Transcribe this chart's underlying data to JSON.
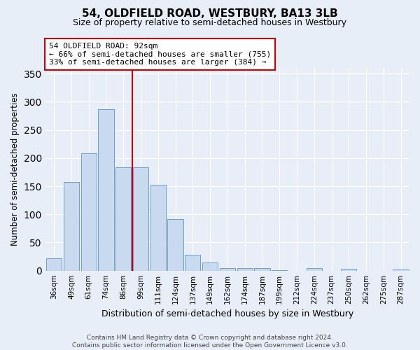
{
  "title": "54, OLDFIELD ROAD, WESTBURY, BA13 3LB",
  "subtitle": "Size of property relative to semi-detached houses in Westbury",
  "xlabel": "Distribution of semi-detached houses by size in Westbury",
  "ylabel": "Number of semi-detached properties",
  "bar_labels": [
    "36sqm",
    "49sqm",
    "61sqm",
    "74sqm",
    "86sqm",
    "99sqm",
    "111sqm",
    "124sqm",
    "137sqm",
    "149sqm",
    "162sqm",
    "174sqm",
    "187sqm",
    "199sqm",
    "212sqm",
    "224sqm",
    "237sqm",
    "250sqm",
    "262sqm",
    "275sqm",
    "287sqm"
  ],
  "bar_values": [
    22,
    157,
    209,
    287,
    184,
    184,
    152,
    91,
    28,
    14,
    5,
    4,
    4,
    1,
    0,
    5,
    0,
    3,
    0,
    0,
    2
  ],
  "bar_color": "#c9d9ef",
  "bar_edge_color": "#6ca0cf",
  "vline_color": "#cc0000",
  "property_label": "54 OLDFIELD ROAD: 92sqm",
  "annotation_line1": "← 66% of semi-detached houses are smaller (755)",
  "annotation_line2": "33% of semi-detached houses are larger (384) →",
  "ylim": [
    0,
    360
  ],
  "footer_line1": "Contains HM Land Registry data © Crown copyright and database right 2024.",
  "footer_line2": "Contains public sector information licensed under the Open Government Licence v3.0.",
  "background_color": "#e8eef8",
  "grid_color": "#ffffff",
  "annotation_box_color": "#ffffff",
  "annotation_box_edge": "#cc0000",
  "vline_bar_index": 4
}
